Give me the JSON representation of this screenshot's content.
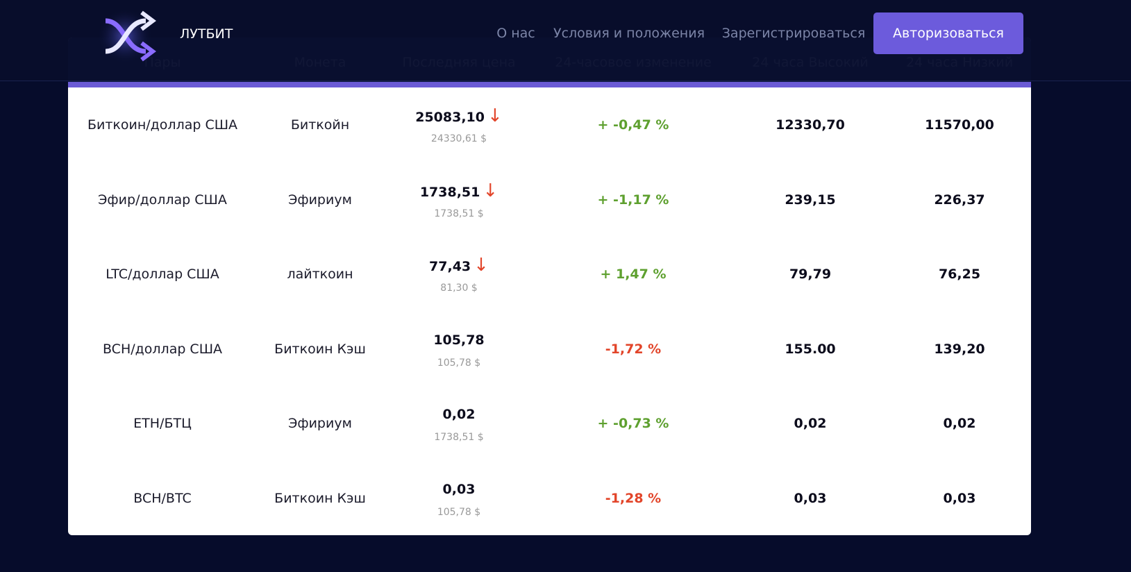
{
  "header": {
    "brand": "ЛУТБИТ",
    "nav": [
      "О нас",
      "Условия и положения",
      "Зарегистрироваться"
    ],
    "button": "Авторизоваться"
  },
  "table": {
    "columns": [
      "Пары",
      "Монета",
      "Последняя цена",
      "24-часовое изменение",
      "24 часа Высокий",
      "24 часа Низкий"
    ],
    "rows": [
      {
        "pair": "Биткоин/доллар США",
        "coin": "Биткойн",
        "price": "25083,10",
        "arrow": "↓",
        "sub": "24330,61 $",
        "change": "+ -0,47 %",
        "change_color": "#5ea02f",
        "high": "12330,70",
        "low": "11570,00"
      },
      {
        "pair": "Эфир/доллар США",
        "coin": "Эфириум",
        "price": "1738,51",
        "arrow": "↓",
        "sub": "1738,51 $",
        "change": "+ -1,17 %",
        "change_color": "#5ea02f",
        "high": "239,15",
        "low": "226,37"
      },
      {
        "pair": "LTC/доллар США",
        "coin": "лайткоин",
        "price": "77,43",
        "arrow": "↓",
        "sub": "81,30 $",
        "change": "+ 1,47 %",
        "change_color": "#5ea02f",
        "high": "79,79",
        "low": "76,25"
      },
      {
        "pair": "BCH/доллар США",
        "coin": "Биткоин Кэш",
        "price": "105,78",
        "sub": "105,78 $",
        "change": "-1,72 %",
        "change_color": "#e2452a",
        "high": "155.00",
        "low": "139,20"
      },
      {
        "pair": "ETH/БТЦ",
        "coin": "Эфириум",
        "price": "0,02",
        "sub": "1738,51 $",
        "change": "+ -0,73 %",
        "change_color": "#5ea02f",
        "high": "0,02",
        "low": "0,02"
      },
      {
        "pair": "BCH/BTC",
        "coin": "Биткоин Кэш",
        "price": "0,03",
        "sub": "105,78 $",
        "change": "-1,28 %",
        "change_color": "#e2452a",
        "high": "0,03",
        "low": "0,03"
      }
    ]
  }
}
